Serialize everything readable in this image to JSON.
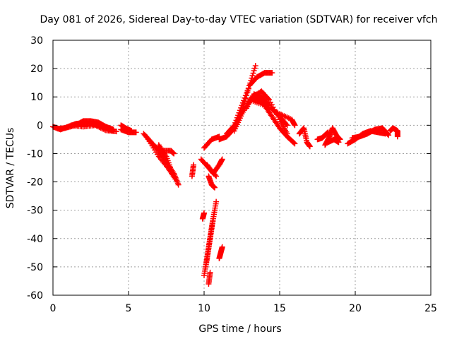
{
  "chart_data": {
    "type": "scatter",
    "title": "Day 081 of 2026, Sidereal Day-to-day VTEC variation (SDTVAR) for receiver vfch",
    "xlabel": "GPS time / hours",
    "ylabel": "SDTVAR / TECUs",
    "xlim": [
      0,
      25
    ],
    "ylim": [
      -60,
      30
    ],
    "xticks": [
      "0",
      "5",
      "10",
      "15",
      "20",
      "25"
    ],
    "yticks": [
      "30",
      "20",
      "10",
      "0",
      "-10",
      "-20",
      "-30",
      "-40",
      "-50",
      "-60"
    ],
    "grid": true,
    "marker": "+",
    "series": [
      {
        "name": "SDTVAR",
        "color": "#ff0000",
        "tracks": [
          [
            [
              0.0,
              -0.5
            ],
            [
              0.5,
              -1.5
            ],
            [
              1.0,
              -0.5
            ],
            [
              1.5,
              0.5
            ],
            [
              2.0,
              0.8
            ],
            [
              2.5,
              0.5
            ],
            [
              3.0,
              0.0
            ],
            [
              3.5,
              -1.0
            ],
            [
              4.0,
              -2.0
            ]
          ],
          [
            [
              0.3,
              -1.2
            ],
            [
              0.8,
              -1.0
            ],
            [
              1.5,
              0.0
            ],
            [
              2.0,
              1.5
            ],
            [
              2.5,
              1.5
            ],
            [
              3.0,
              1.0
            ],
            [
              3.5,
              -0.5
            ],
            [
              4.0,
              -1.5
            ]
          ],
          [
            [
              1.2,
              0.0
            ],
            [
              2.0,
              -0.5
            ],
            [
              2.8,
              0.0
            ],
            [
              3.5,
              -1.8
            ],
            [
              4.2,
              -2.2
            ]
          ],
          [
            [
              4.5,
              0.0
            ],
            [
              4.8,
              -1.0
            ],
            [
              5.2,
              -2.0
            ]
          ],
          [
            [
              4.5,
              -1.5
            ],
            [
              5.0,
              -2.5
            ],
            [
              5.5,
              -2.5
            ]
          ],
          [
            [
              6.0,
              -3.0
            ],
            [
              6.5,
              -6.0
            ],
            [
              7.0,
              -9.0
            ],
            [
              7.5,
              -13.0
            ],
            [
              8.0,
              -17.0
            ],
            [
              8.3,
              -21.0
            ]
          ],
          [
            [
              6.3,
              -5.0
            ],
            [
              7.0,
              -11.0
            ],
            [
              7.6,
              -15.0
            ],
            [
              8.1,
              -19.0
            ]
          ],
          [
            [
              7.0,
              -7.0
            ],
            [
              7.5,
              -11.0
            ],
            [
              7.9,
              -17.0
            ]
          ],
          [
            [
              7.2,
              -9.0
            ],
            [
              7.8,
              -9.0
            ],
            [
              8.0,
              -10.0
            ]
          ],
          [
            [
              9.3,
              -14.0
            ],
            [
              9.2,
              -18.0
            ]
          ],
          [
            [
              9.8,
              -12.0
            ],
            [
              10.3,
              -15.0
            ],
            [
              10.8,
              -18.0
            ]
          ],
          [
            [
              10.0,
              -8.0
            ],
            [
              10.5,
              -5.0
            ],
            [
              11.0,
              -4.0
            ]
          ],
          [
            [
              10.2,
              -14.0
            ],
            [
              10.6,
              -17.0
            ],
            [
              11.0,
              -14.0
            ],
            [
              11.2,
              -12.0
            ]
          ],
          [
            [
              10.3,
              -18.0
            ],
            [
              10.5,
              -21.0
            ],
            [
              10.7,
              -22.0
            ]
          ],
          [
            [
              10.0,
              -31.0
            ],
            [
              9.9,
              -33.0
            ]
          ],
          [
            [
              10.0,
              -53.0
            ],
            [
              10.2,
              -47.0
            ],
            [
              10.4,
              -40.0
            ],
            [
              10.6,
              -33.0
            ],
            [
              10.8,
              -27.0
            ]
          ],
          [
            [
              10.1,
              -50.0
            ],
            [
              10.3,
              -43.0
            ],
            [
              10.5,
              -36.0
            ],
            [
              10.7,
              -30.0
            ]
          ],
          [
            [
              10.3,
              -56.0
            ],
            [
              10.4,
              -52.0
            ]
          ],
          [
            [
              11.0,
              -47.0
            ],
            [
              11.1,
              -45.0
            ],
            [
              11.2,
              -43.0
            ]
          ],
          [
            [
              11.0,
              -5.0
            ],
            [
              11.5,
              -4.0
            ],
            [
              12.0,
              -1.0
            ],
            [
              12.5,
              5.0
            ],
            [
              13.0,
              14.0
            ],
            [
              13.4,
              21.0
            ]
          ],
          [
            [
              11.5,
              -3.0
            ],
            [
              12.0,
              0.0
            ],
            [
              12.5,
              7.0
            ],
            [
              13.0,
              14.0
            ],
            [
              13.5,
              17.0
            ],
            [
              14.0,
              18.5
            ],
            [
              14.5,
              18.5
            ]
          ],
          [
            [
              12.0,
              -2.0
            ],
            [
              12.5,
              4.0
            ],
            [
              13.0,
              9.0
            ],
            [
              13.5,
              9.5
            ],
            [
              14.0,
              7.0
            ],
            [
              14.5,
              3.0
            ],
            [
              15.0,
              -1.0
            ],
            [
              15.5,
              -4.0
            ],
            [
              16.0,
              -6.5
            ]
          ],
          [
            [
              12.8,
              6.0
            ],
            [
              13.3,
              11.0
            ],
            [
              13.8,
              10.0
            ],
            [
              14.3,
              7.0
            ],
            [
              15.0,
              3.0
            ],
            [
              15.5,
              0.0
            ]
          ],
          [
            [
              13.0,
              9.0
            ],
            [
              14.0,
              7.0
            ],
            [
              15.0,
              4.0
            ],
            [
              15.8,
              2.0
            ],
            [
              16.0,
              0.0
            ]
          ],
          [
            [
              13.2,
              10.0
            ],
            [
              13.8,
              12.0
            ],
            [
              14.3,
              9.0
            ],
            [
              15.0,
              2.0
            ],
            [
              15.5,
              -3.0
            ]
          ],
          [
            [
              16.3,
              -3.0
            ],
            [
              16.6,
              -1.0
            ],
            [
              16.8,
              -6.0
            ],
            [
              17.0,
              -7.5
            ]
          ],
          [
            [
              17.5,
              -5.0
            ],
            [
              17.8,
              -4.5
            ],
            [
              18.0,
              -3.5
            ],
            [
              18.2,
              -2.5
            ]
          ],
          [
            [
              18.0,
              -7.0
            ],
            [
              18.3,
              -4.0
            ],
            [
              18.5,
              -1.0
            ],
            [
              18.8,
              -4.0
            ],
            [
              19.0,
              -5.0
            ]
          ],
          [
            [
              18.2,
              -6.0
            ],
            [
              18.6,
              -5.0
            ],
            [
              18.9,
              -6.0
            ]
          ],
          [
            [
              19.5,
              -6.5
            ],
            [
              20.0,
              -5.0
            ],
            [
              20.5,
              -3.0
            ],
            [
              21.0,
              -2.0
            ],
            [
              21.5,
              -2.5
            ],
            [
              22.0,
              -3.0
            ]
          ],
          [
            [
              19.8,
              -4.5
            ],
            [
              20.3,
              -4.0
            ],
            [
              20.8,
              -3.0
            ],
            [
              21.3,
              -1.5
            ],
            [
              21.8,
              -1.0
            ],
            [
              22.2,
              -3.5
            ]
          ],
          [
            [
              22.3,
              -2.0
            ],
            [
              22.5,
              -1.0
            ],
            [
              22.8,
              -2.0
            ],
            [
              22.8,
              -4.0
            ]
          ]
        ]
      }
    ]
  }
}
